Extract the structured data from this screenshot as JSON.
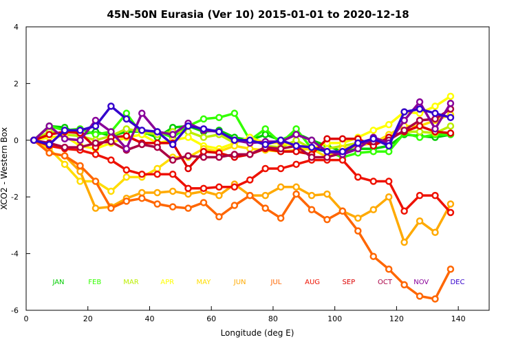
{
  "chart_data": {
    "type": "line",
    "title": "45N-50N Eurasia (Ver 10)   2015-01-01 to 2020-12-18",
    "xlabel": "Longitude (deg E)",
    "ylabel": "XCO2 - Western Box",
    "xlim": [
      0,
      150
    ],
    "ylim": [
      -6,
      4
    ],
    "xticks": [
      0,
      20,
      40,
      60,
      80,
      100,
      120,
      140
    ],
    "yticks": [
      -6,
      -4,
      -2,
      0,
      2,
      4
    ],
    "grid": false,
    "x": [
      2.5,
      7.5,
      12.5,
      17.5,
      22.5,
      27.5,
      32.5,
      37.5,
      42.5,
      47.5,
      52.5,
      57.5,
      62.5,
      67.5,
      72.5,
      77.5,
      82.5,
      87.5,
      92.5,
      97.5,
      102.5,
      107.5,
      112.5,
      117.5,
      122.5,
      127.5,
      132.5,
      137.5
    ],
    "series": [
      {
        "name": "JAN",
        "color": "#00cc00",
        "values": [
          0.0,
          0.5,
          0.45,
          0.2,
          0.3,
          0.15,
          0.3,
          0.3,
          0.1,
          0.45,
          0.5,
          0.3,
          0.35,
          0.1,
          0.0,
          0.2,
          0.0,
          0.25,
          0.0,
          -0.2,
          -0.4,
          -0.3,
          -0.3,
          -0.2,
          0.2,
          0.15,
          0.1,
          0.2
        ]
      },
      {
        "name": "FEB",
        "color": "#33ff00",
        "values": [
          0.0,
          0.5,
          0.35,
          0.4,
          0.2,
          0.3,
          0.95,
          0.2,
          0.3,
          0.1,
          0.5,
          0.75,
          0.8,
          0.95,
          0.0,
          0.4,
          -0.1,
          0.4,
          -0.3,
          -0.4,
          -0.6,
          -0.45,
          -0.4,
          -0.4,
          0.25,
          0.1,
          0.2,
          0.2
        ]
      },
      {
        "name": "MAR",
        "color": "#bbee00",
        "values": [
          0.0,
          0.3,
          0.2,
          0.15,
          0.0,
          0.15,
          0.4,
          0.3,
          0.2,
          0.3,
          0.3,
          0.1,
          0.2,
          -0.1,
          0.1,
          -0.2,
          -0.25,
          0.0,
          -0.3,
          -0.3,
          -0.2,
          -0.1,
          0.0,
          0.05,
          0.3,
          0.3,
          0.25,
          0.5
        ]
      },
      {
        "name": "APR",
        "color": "#ffff00",
        "values": [
          0.0,
          0.1,
          0.15,
          -0.2,
          -0.3,
          -0.1,
          0.1,
          0.2,
          -0.1,
          0.0,
          0.1,
          -0.2,
          -0.3,
          -0.1,
          0.1,
          -0.1,
          -0.1,
          -0.2,
          -0.3,
          -0.1,
          -0.1,
          0.1,
          0.35,
          0.55,
          1.0,
          0.95,
          1.2,
          1.55
        ]
      },
      {
        "name": "MAY",
        "color": "#ffdd00",
        "values": [
          0.0,
          -0.3,
          -0.85,
          -1.45,
          -1.45,
          -1.8,
          -1.3,
          -1.3,
          -1.0,
          -0.6,
          -0.6,
          -0.3,
          -0.4,
          -0.2,
          -0.3,
          -0.35,
          -0.4,
          -0.35,
          -0.3,
          -0.6,
          -0.3,
          -0.2,
          -0.1,
          0.2,
          0.5,
          0.5,
          0.7,
          0.9
        ]
      },
      {
        "name": "JUN",
        "color": "#ffaa00",
        "values": [
          0.0,
          -0.45,
          -0.55,
          -1.1,
          -2.4,
          -2.35,
          -2.05,
          -1.85,
          -1.85,
          -1.8,
          -1.9,
          -1.8,
          -1.95,
          -1.55,
          -1.95,
          -1.95,
          -1.65,
          -1.65,
          -1.95,
          -1.9,
          -2.5,
          -2.75,
          -2.45,
          -2.0,
          -3.6,
          -2.85,
          -3.25,
          -2.25
        ]
      },
      {
        "name": "JUL",
        "color": "#ff6600",
        "values": [
          0.0,
          -0.45,
          -0.55,
          -0.9,
          -1.45,
          -2.4,
          -2.15,
          -2.05,
          -2.25,
          -2.35,
          -2.4,
          -2.2,
          -2.7,
          -2.3,
          -1.95,
          -2.4,
          -2.75,
          -1.9,
          -2.45,
          -2.8,
          -2.5,
          -3.2,
          -4.1,
          -4.55,
          -5.1,
          -5.5,
          -5.6,
          -4.55
        ]
      },
      {
        "name": "AUG",
        "color": "#ee1100",
        "values": [
          0.0,
          -0.2,
          -0.3,
          -0.35,
          -0.5,
          -0.7,
          -1.05,
          -1.2,
          -1.2,
          -1.2,
          -1.7,
          -1.7,
          -1.65,
          -1.65,
          -1.4,
          -1.0,
          -1.0,
          -0.85,
          -0.7,
          -0.7,
          -0.7,
          -1.3,
          -1.45,
          -1.45,
          -2.5,
          -1.95,
          -1.95,
          -2.55
        ]
      },
      {
        "name": "SEP",
        "color": "#dd0000",
        "values": [
          0.0,
          0.2,
          0.3,
          0.25,
          -0.25,
          0.1,
          0.15,
          -0.1,
          -0.1,
          -0.1,
          -1.0,
          -0.4,
          -0.45,
          -0.6,
          -0.5,
          -0.3,
          -0.4,
          -0.4,
          -0.5,
          0.05,
          0.05,
          0.05,
          -0.2,
          0.1,
          0.3,
          0.5,
          0.3,
          0.25
        ]
      },
      {
        "name": "OCT",
        "color": "#aa0044",
        "values": [
          0.0,
          -0.1,
          -0.25,
          -0.25,
          -0.1,
          -0.05,
          -0.35,
          -0.15,
          -0.25,
          -0.7,
          -0.55,
          -0.6,
          -0.6,
          -0.5,
          -0.5,
          -0.25,
          -0.3,
          -0.2,
          -0.6,
          -0.6,
          -0.45,
          -0.1,
          -0.05,
          0.0,
          0.35,
          0.7,
          0.75,
          1.1
        ]
      },
      {
        "name": "NOV",
        "color": "#880099",
        "values": [
          0.0,
          0.5,
          0.05,
          0.0,
          0.7,
          0.3,
          -0.3,
          0.95,
          0.3,
          0.2,
          0.6,
          0.35,
          0.3,
          0.0,
          -0.1,
          -0.05,
          -0.05,
          0.2,
          0.0,
          -0.4,
          -0.5,
          -0.3,
          0.1,
          -0.1,
          0.7,
          1.35,
          0.4,
          1.3
        ]
      },
      {
        "name": "DEC",
        "color": "#3300cc",
        "values": [
          0.0,
          -0.15,
          0.35,
          0.35,
          0.5,
          1.2,
          0.75,
          0.35,
          0.3,
          -0.15,
          0.5,
          0.4,
          0.3,
          0.0,
          0.0,
          -0.15,
          0.0,
          -0.2,
          -0.25,
          -0.4,
          -0.4,
          -0.1,
          0.05,
          -0.2,
          1.0,
          1.1,
          0.95,
          0.8
        ]
      }
    ]
  }
}
